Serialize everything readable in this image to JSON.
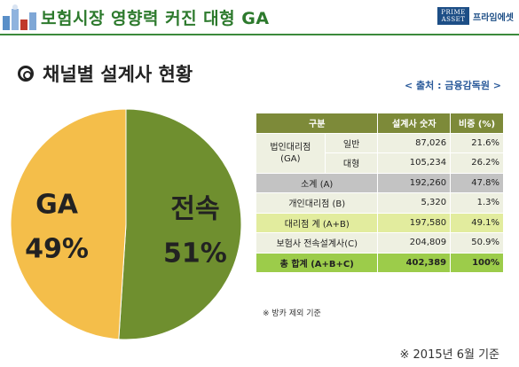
{
  "header": {
    "title": "보험시장 영향력 커진 대형 GA",
    "brand_box": "PRIME ASSET",
    "brand_name": "프라임에셋",
    "accent": "#3c8a3c"
  },
  "section": {
    "title": "채널별 설계사 현황",
    "bullet_icon": "double-circle-icon",
    "source": "< 출처 : 금융감독원 >"
  },
  "chart_data": {
    "type": "pie",
    "slices": [
      {
        "label": "전속",
        "percent_label": "51%",
        "value": 51,
        "color": "#6f8f2f"
      },
      {
        "label": "GA",
        "percent_label": "49%",
        "value": 49,
        "color": "#f4be4a"
      }
    ]
  },
  "table": {
    "headers": [
      "구분",
      "설계사 숫자",
      "비중 (%)"
    ],
    "corp_group": "법인대리점 (GA)",
    "rows": [
      {
        "sub": "일반",
        "count": "87,026",
        "share": "21.6%"
      },
      {
        "sub": "대형",
        "count": "105,234",
        "share": "26.2%"
      },
      {
        "label": "소계 (A)",
        "count": "192,260",
        "share": "47.8%"
      },
      {
        "label": "개인대리점 (B)",
        "count": "5,320",
        "share": "1.3%"
      },
      {
        "label": "대리점 계 (A+B)",
        "count": "197,580",
        "share": "49.1%"
      },
      {
        "label": "보험사 전속설계사(C)",
        "count": "204,809",
        "share": "50.9%"
      },
      {
        "label": "총 합계 (A+B+C)",
        "count": "402,389",
        "share": "100%"
      }
    ],
    "footnote": "※ 방카 제외 기준"
  },
  "basis": "※ 2015년 6월 기준"
}
